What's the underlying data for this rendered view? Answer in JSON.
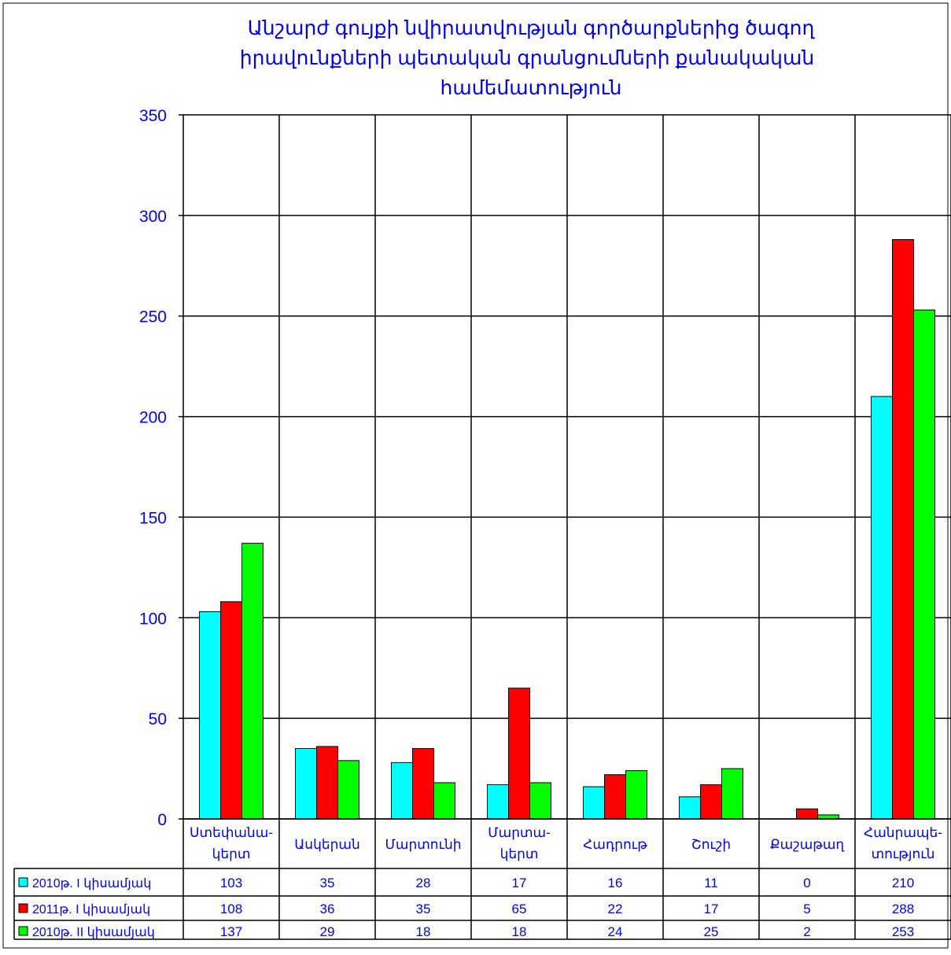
{
  "chart_data": {
    "type": "bar",
    "title_lines": [
      "Անշարժ գույքի նվիրատվության գործարքներից  ծագող",
      "իրավունքների պետական գրանցումների քանակական",
      "համեմատություն"
    ],
    "categories": [
      [
        "Ստեփանա-",
        "կերտ"
      ],
      [
        "Ասկերան"
      ],
      [
        "Մարտունի"
      ],
      [
        "Մարտա-",
        "կերտ"
      ],
      [
        "Հադրութ"
      ],
      [
        "Շուշի"
      ],
      [
        "Քաշաթաղ"
      ],
      [
        "Հանրապե-",
        "տություն"
      ]
    ],
    "series": [
      {
        "name": "2010թ.  I կիսամյակ",
        "color": "#00ffff",
        "values": [
          103,
          35,
          28,
          17,
          16,
          11,
          0,
          210
        ]
      },
      {
        "name": "2011թ.  I կիսամյակ",
        "color": "#ff0000",
        "values": [
          108,
          36,
          35,
          65,
          22,
          17,
          5,
          288
        ]
      },
      {
        "name": "2010թ.  II կիսամյակ",
        "color": "#00ff00",
        "values": [
          137,
          29,
          18,
          18,
          24,
          25,
          2,
          253
        ]
      }
    ],
    "ylim": [
      0,
      350
    ],
    "yticks": [
      0,
      50,
      100,
      150,
      200,
      250,
      300,
      350
    ],
    "grid": true,
    "legend": "data-table",
    "colors": {
      "title": "#0000ff",
      "axis_labels": "#0000ff",
      "table_text": "#0000ff",
      "grid": "#000000"
    }
  }
}
